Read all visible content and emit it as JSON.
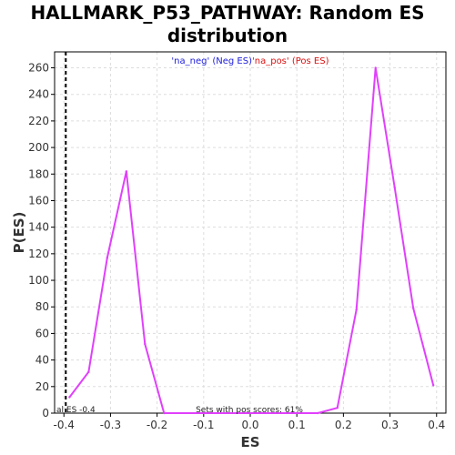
{
  "chart_data": {
    "type": "line",
    "title_line1": "HALLMARK_P53_PATHWAY: Random ES",
    "title_line2": "distribution",
    "xlabel": "ES",
    "ylabel": "P(ES)",
    "xlim": [
      -0.42,
      0.42
    ],
    "ylim": [
      0,
      272
    ],
    "xticks": [
      -0.4,
      -0.3,
      -0.2,
      -0.1,
      0.0,
      0.1,
      0.2,
      0.3,
      0.4
    ],
    "xtick_labels": [
      "-0.4",
      "-0.3",
      "-0.2",
      "-0.1",
      "0.0",
      "0.1",
      "0.2",
      "0.3",
      "0.4"
    ],
    "yticks": [
      0,
      20,
      40,
      60,
      80,
      100,
      120,
      140,
      160,
      180,
      200,
      220,
      240,
      260
    ],
    "grid": true,
    "series": [
      {
        "color": "#e040fb",
        "x": [
          -0.388,
          -0.347,
          -0.307,
          -0.266,
          -0.226,
          -0.185,
          0.145,
          0.187,
          0.228,
          0.269,
          0.31,
          0.35,
          0.393
        ],
        "y": [
          12,
          31,
          117,
          182,
          52,
          0,
          0,
          4,
          78,
          260,
          170,
          79,
          21
        ]
      }
    ],
    "vline": {
      "x": -0.396,
      "color": "#000000",
      "style": "dashed"
    },
    "legend": {
      "neg_label": "'na_neg' (Neg ES)",
      "neg_color": "#2020dd",
      "pos_label": "'na_pos' (Pos ES)",
      "pos_color": "#dd1010"
    },
    "annotations": {
      "actual_es": "al ES -0.4",
      "pos_scores": "Sets with pos scores: 61%"
    }
  }
}
